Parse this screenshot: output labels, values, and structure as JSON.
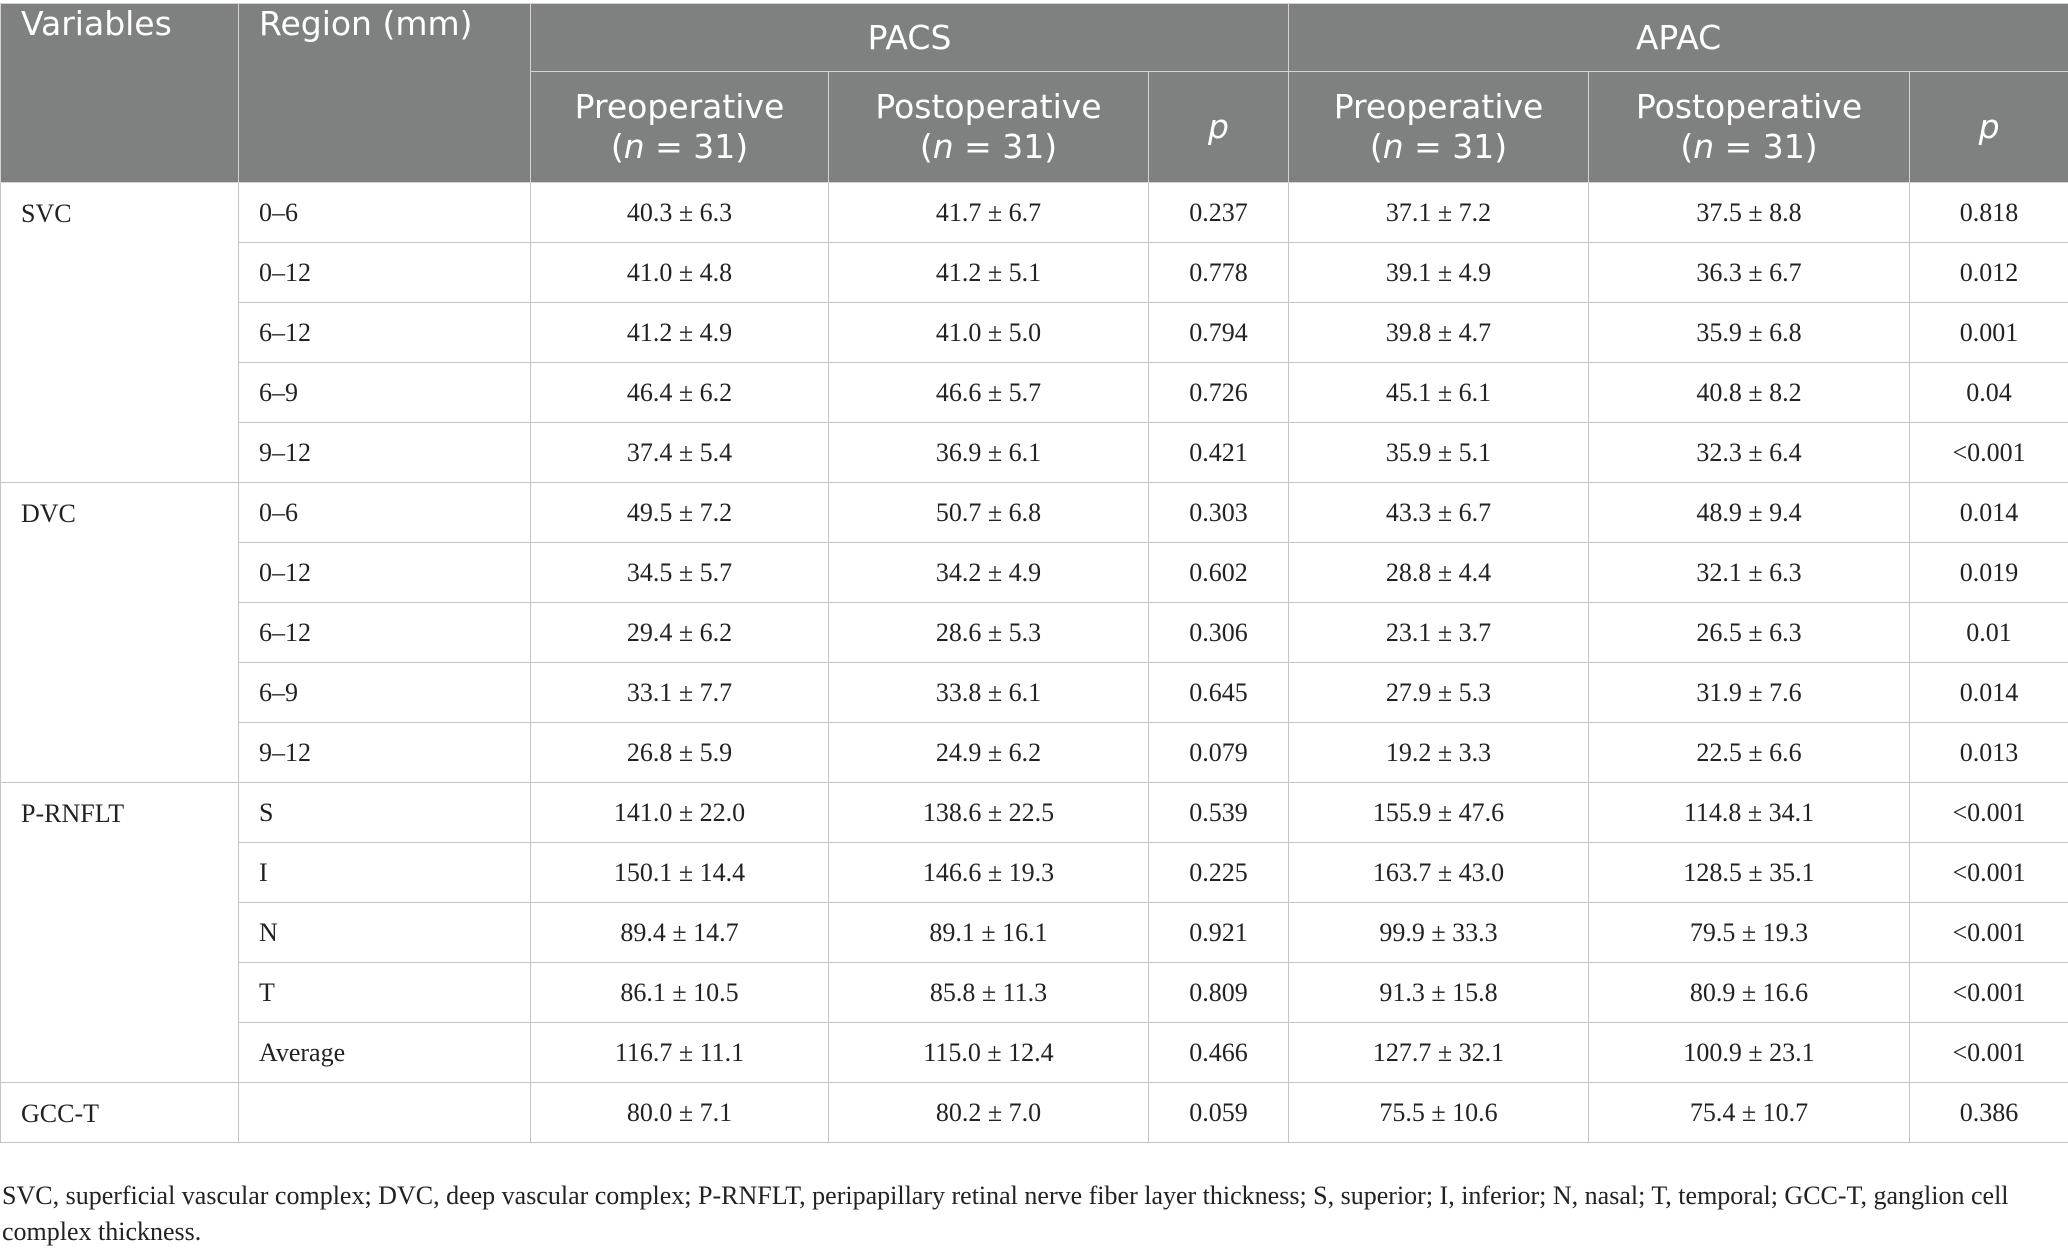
{
  "header": {
    "variables": "Variables",
    "region": "Region (mm)",
    "groups": [
      "PACS",
      "APAC"
    ],
    "pre_label": "Preoperative",
    "post_label": "Postoperative",
    "n_prefix": "(",
    "n_var": "n",
    "n_suffix": " = 31)",
    "p_label": "p"
  },
  "sections": [
    {
      "variable": "SVC",
      "rows": [
        {
          "region": "0–6",
          "cells": [
            "40.3 ± 6.3",
            "41.7 ± 6.7",
            "0.237",
            "37.1 ± 7.2",
            "37.5 ± 8.8",
            "0.818"
          ]
        },
        {
          "region": "0–12",
          "cells": [
            "41.0 ± 4.8",
            "41.2 ± 5.1",
            "0.778",
            "39.1 ± 4.9",
            "36.3 ± 6.7",
            "0.012"
          ]
        },
        {
          "region": "6–12",
          "cells": [
            "41.2 ± 4.9",
            "41.0 ± 5.0",
            "0.794",
            "39.8 ± 4.7",
            "35.9 ± 6.8",
            "0.001"
          ]
        },
        {
          "region": "6–9",
          "cells": [
            "46.4 ± 6.2",
            "46.6 ± 5.7",
            "0.726",
            "45.1 ± 6.1",
            "40.8 ± 8.2",
            "0.04"
          ]
        },
        {
          "region": "9–12",
          "cells": [
            "37.4 ± 5.4",
            "36.9 ± 6.1",
            "0.421",
            "35.9 ± 5.1",
            "32.3 ± 6.4",
            "<0.001"
          ]
        }
      ]
    },
    {
      "variable": "DVC",
      "rows": [
        {
          "region": "0–6",
          "cells": [
            "49.5 ± 7.2",
            "50.7 ± 6.8",
            "0.303",
            "43.3 ± 6.7",
            "48.9 ± 9.4",
            "0.014"
          ]
        },
        {
          "region": "0–12",
          "cells": [
            "34.5 ± 5.7",
            "34.2 ± 4.9",
            "0.602",
            "28.8 ± 4.4",
            "32.1 ± 6.3",
            "0.019"
          ]
        },
        {
          "region": "6–12",
          "cells": [
            "29.4 ± 6.2",
            "28.6 ± 5.3",
            "0.306",
            "23.1 ± 3.7",
            "26.5 ± 6.3",
            "0.01"
          ]
        },
        {
          "region": "6–9",
          "cells": [
            "33.1 ± 7.7",
            "33.8 ± 6.1",
            "0.645",
            "27.9 ± 5.3",
            "31.9 ± 7.6",
            "0.014"
          ]
        },
        {
          "region": "9–12",
          "cells": [
            "26.8 ± 5.9",
            "24.9 ± 6.2",
            "0.079",
            "19.2 ± 3.3",
            "22.5 ± 6.6",
            "0.013"
          ]
        }
      ]
    },
    {
      "variable": "P-RNFLT",
      "rows": [
        {
          "region": "S",
          "cells": [
            "141.0 ± 22.0",
            "138.6 ± 22.5",
            "0.539",
            "155.9 ± 47.6",
            "114.8 ± 34.1",
            "<0.001"
          ]
        },
        {
          "region": "I",
          "cells": [
            "150.1 ± 14.4",
            "146.6 ± 19.3",
            "0.225",
            "163.7 ± 43.0",
            "128.5 ± 35.1",
            "<0.001"
          ]
        },
        {
          "region": "N",
          "cells": [
            "89.4 ± 14.7",
            "89.1 ± 16.1",
            "0.921",
            "99.9 ± 33.3",
            "79.5 ± 19.3",
            "<0.001"
          ]
        },
        {
          "region": "T",
          "cells": [
            "86.1 ± 10.5",
            "85.8 ± 11.3",
            "0.809",
            "91.3 ± 15.8",
            "80.9 ± 16.6",
            "<0.001"
          ]
        },
        {
          "region": "Average",
          "cells": [
            "116.7 ± 11.1",
            "115.0 ± 12.4",
            "0.466",
            "127.7 ± 32.1",
            "100.9 ± 23.1",
            "<0.001"
          ]
        }
      ]
    },
    {
      "variable": "GCC-T",
      "rows": [
        {
          "region": "",
          "cells": [
            "80.0 ± 7.1",
            "80.2 ± 7.0",
            "0.059",
            "75.5 ± 10.6",
            "75.4 ± 10.7",
            "0.386"
          ]
        }
      ]
    }
  ],
  "footnote": "SVC, superficial vascular complex; DVC, deep vascular complex; P-RNFLT, peripapillary retinal nerve fiber layer thickness; S, superior; I, inferior; N, nasal; T, temporal; GCC-T, ganglion cell complex thickness."
}
